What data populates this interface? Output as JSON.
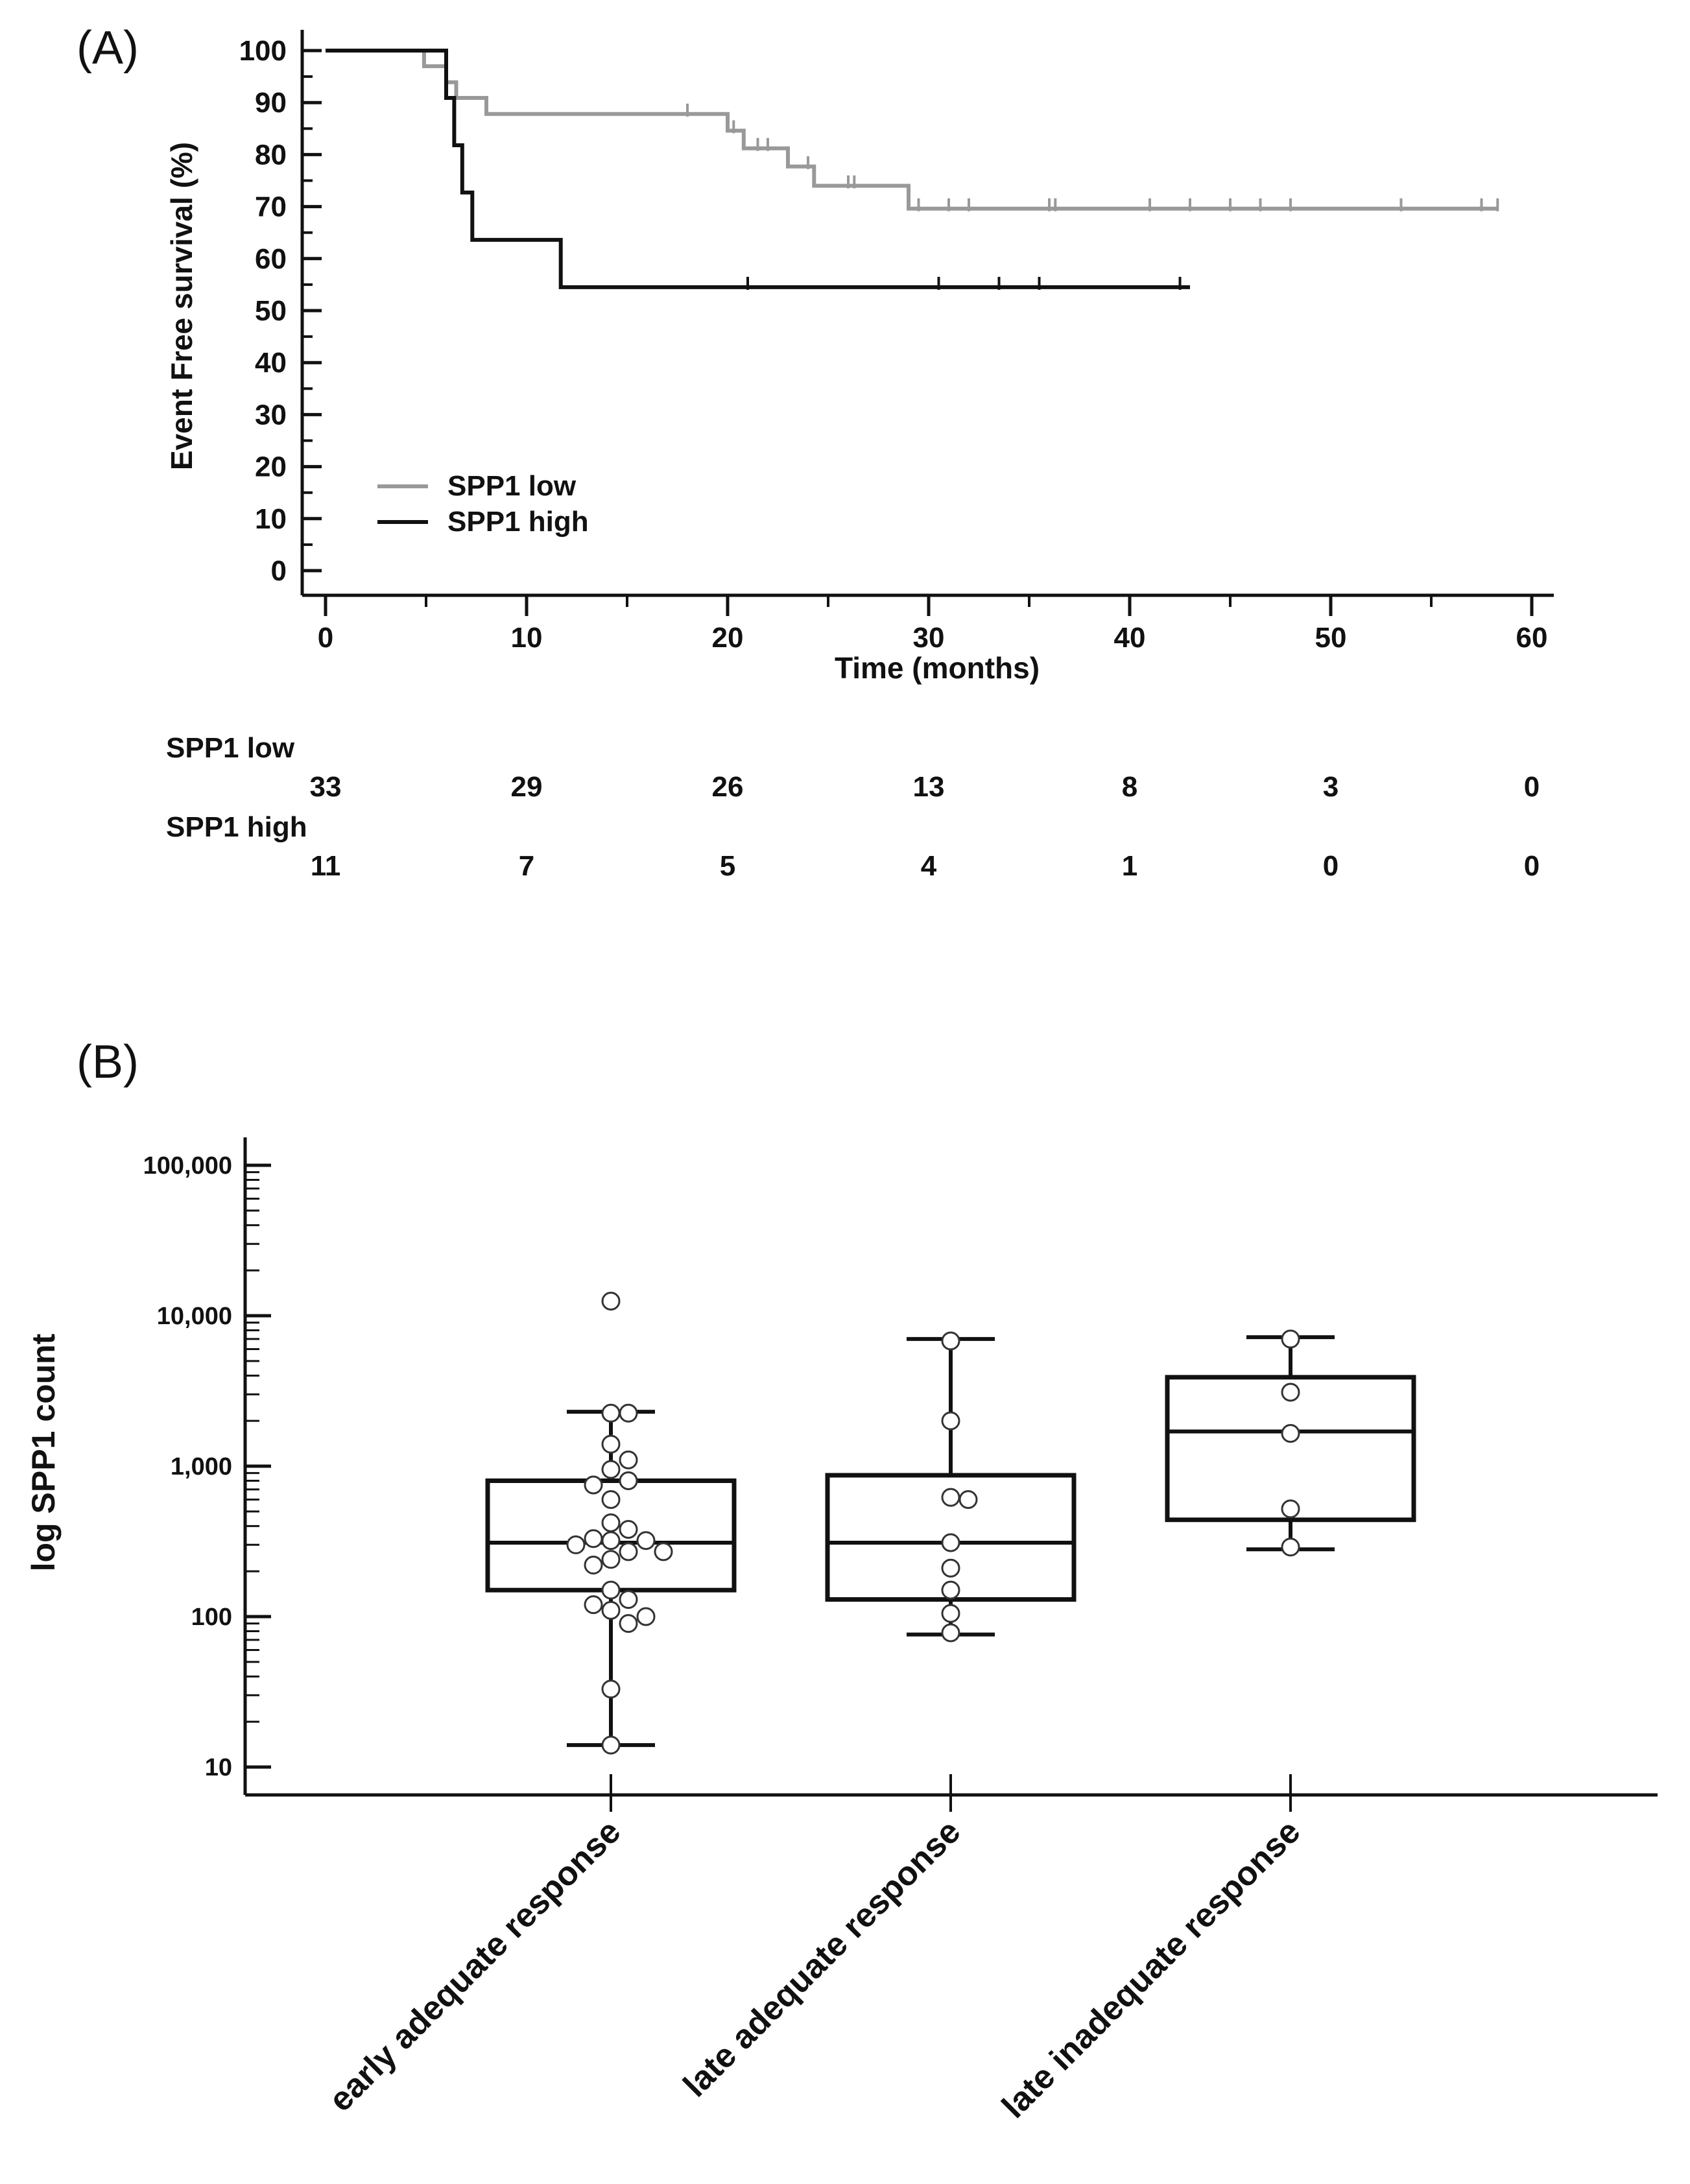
{
  "panels": {
    "a_label": "(A)",
    "b_label": "(B)"
  },
  "colors": {
    "low": "#999999",
    "high": "#111111",
    "axis": "#111111",
    "point_fill": "#ffffff"
  },
  "chart_data": [
    {
      "type": "line",
      "subtype": "kaplan-meier",
      "title": "",
      "xlabel": "Time (months)",
      "ylabel": "Event Free survival (%)",
      "xlim": [
        0,
        60
      ],
      "ylim": [
        0,
        100
      ],
      "xticks": [
        0,
        10,
        20,
        30,
        40,
        50,
        60
      ],
      "yticks": [
        0,
        10,
        20,
        30,
        40,
        50,
        60,
        70,
        80,
        90,
        100
      ],
      "legend_position": "lower-left",
      "series": [
        {
          "name": "SPP1 low",
          "color": "#999999",
          "steps": [
            [
              0,
              100
            ],
            [
              4.9,
              100
            ],
            [
              4.9,
              97
            ],
            [
              6.0,
              97
            ],
            [
              6.0,
              93.9
            ],
            [
              6.5,
              93.9
            ],
            [
              6.5,
              90.9
            ],
            [
              8.0,
              90.9
            ],
            [
              8.0,
              87.8
            ],
            [
              20.0,
              87.8
            ],
            [
              20.0,
              84.6
            ],
            [
              20.8,
              84.6
            ],
            [
              20.8,
              81.2
            ],
            [
              23.0,
              81.2
            ],
            [
              23.0,
              77.7
            ],
            [
              24.3,
              77.7
            ],
            [
              24.3,
              74.0
            ],
            [
              29.0,
              74.0
            ],
            [
              29.0,
              69.6
            ],
            [
              58.3,
              69.6
            ]
          ],
          "censored": [
            [
              18,
              87.8
            ],
            [
              20.3,
              84.6
            ],
            [
              21.5,
              81.2
            ],
            [
              22.0,
              81.2
            ],
            [
              24.0,
              77.7
            ],
            [
              26.0,
              74.0
            ],
            [
              26.3,
              74.0
            ],
            [
              29.5,
              69.6
            ],
            [
              31.0,
              69.6
            ],
            [
              32.0,
              69.6
            ],
            [
              36.0,
              69.6
            ],
            [
              36.3,
              69.6
            ],
            [
              41.0,
              69.6
            ],
            [
              43.0,
              69.6
            ],
            [
              45.0,
              69.6
            ],
            [
              46.5,
              69.6
            ],
            [
              48.0,
              69.6
            ],
            [
              53.5,
              69.6
            ],
            [
              57.5,
              69.6
            ],
            [
              58.3,
              69.6
            ]
          ]
        },
        {
          "name": "SPP1 high",
          "color": "#111111",
          "steps": [
            [
              0,
              100
            ],
            [
              6.0,
              100
            ],
            [
              6.0,
              90.9
            ],
            [
              6.4,
              90.9
            ],
            [
              6.4,
              81.8
            ],
            [
              6.8,
              81.8
            ],
            [
              6.8,
              72.7
            ],
            [
              7.3,
              72.7
            ],
            [
              7.3,
              63.6
            ],
            [
              11.7,
              63.6
            ],
            [
              11.7,
              54.5
            ],
            [
              43.0,
              54.5
            ]
          ],
          "censored": [
            [
              21,
              54.5
            ],
            [
              30.5,
              54.5
            ],
            [
              33.5,
              54.5
            ],
            [
              35.5,
              54.5
            ],
            [
              42.5,
              54.5
            ]
          ]
        }
      ],
      "risk_table": {
        "times": [
          0,
          10,
          20,
          30,
          40,
          50,
          60
        ],
        "groups": [
          {
            "name": "SPP1 low",
            "counts": [
              "33",
              "29",
              "26",
              "13",
              "8",
              "3",
              "0"
            ]
          },
          {
            "name": "SPP1 high",
            "counts": [
              "11",
              "7",
              "5",
              "4",
              "1",
              "0",
              "0"
            ]
          }
        ]
      }
    },
    {
      "type": "box",
      "title": "",
      "xlabel": "",
      "ylabel": "log SPP1 count",
      "yscale": "log",
      "ylim": [
        7,
        150000
      ],
      "yticks": [
        10,
        100,
        1000,
        10000,
        100000
      ],
      "ytick_labels": [
        "10",
        "100",
        "1,000",
        "10,000",
        "100,000"
      ],
      "categories": [
        "early adequate response",
        "late adequate response",
        "late inadequate response"
      ],
      "boxes": [
        {
          "category": "early adequate response",
          "whisker_low": 14,
          "q1": 150,
          "median": 310,
          "q3": 800,
          "whisker_high": 2300
        },
        {
          "category": "late adequate response",
          "whisker_low": 76,
          "q1": 130,
          "median": 310,
          "q3": 870,
          "whisker_high": 7000
        },
        {
          "category": "late inadequate response",
          "whisker_low": 280,
          "q1": 440,
          "median": 1700,
          "q3": 3900,
          "whisker_high": 7200
        }
      ],
      "points": [
        [
          12500,
          2250,
          2250,
          1400,
          1100,
          950,
          800,
          750,
          600,
          420,
          380,
          320,
          330,
          320,
          300,
          270,
          270,
          240,
          220,
          150,
          130,
          120,
          110,
          100,
          90,
          33,
          14
        ],
        [
          6800,
          2000,
          620,
          600,
          310,
          210,
          150,
          105,
          78
        ],
        [
          7000,
          3100,
          1650,
          520,
          290
        ]
      ]
    }
  ]
}
